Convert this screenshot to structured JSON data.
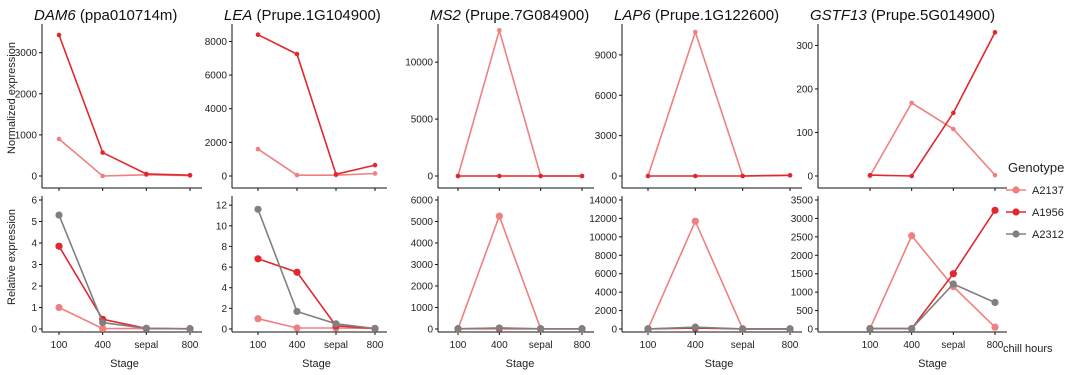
{
  "x_title": "Stage",
  "x_extra_label": "chill hours",
  "top_ylabel": "Normalized expression",
  "bottom_ylabel": "Relative expression",
  "legend": {
    "title": "Genotype",
    "entries": [
      {
        "name": "A2137",
        "color": "#f08080"
      },
      {
        "name": "A1956",
        "color": "#e0282e"
      },
      {
        "name": "A2312",
        "color": "#808080"
      }
    ]
  },
  "chart_data": [
    {
      "type": "line",
      "gene": "DAM6",
      "locus": "(ppa010714m)",
      "categories": [
        "100",
        "400",
        "sepal",
        "800"
      ],
      "top": {
        "ylim": [
          0,
          3600
        ],
        "yticks": [
          0,
          1000,
          2000,
          3000
        ],
        "series": [
          {
            "name": "A2137",
            "values": [
              900,
              0,
              30,
              10
            ]
          },
          {
            "name": "A1956",
            "values": [
              3430,
              570,
              50,
              20
            ]
          }
        ]
      },
      "bottom": {
        "ylim": [
          0,
          6
        ],
        "yticks": [
          0,
          1,
          2,
          3,
          4,
          5,
          6
        ],
        "series": [
          {
            "name": "A2137",
            "values": [
              1.0,
              0.02,
              0.02,
              0.01
            ]
          },
          {
            "name": "A1956",
            "values": [
              3.85,
              0.45,
              0.03,
              0.01
            ]
          },
          {
            "name": "A2312",
            "values": [
              5.3,
              0.3,
              0.03,
              0.01
            ]
          }
        ]
      }
    },
    {
      "type": "line",
      "gene": "LEA",
      "locus": "(Prupe.1G104900)",
      "categories": [
        "100",
        "400",
        "sepal",
        "800"
      ],
      "top": {
        "ylim": [
          0,
          8800
        ],
        "yticks": [
          0,
          2000,
          4000,
          6000,
          8000
        ],
        "series": [
          {
            "name": "A2137",
            "values": [
              1600,
              50,
              50,
              150
            ]
          },
          {
            "name": "A1956",
            "values": [
              8400,
              7250,
              100,
              650
            ]
          }
        ]
      },
      "bottom": {
        "ylim": [
          0,
          12.5
        ],
        "yticks": [
          0,
          2,
          4,
          6,
          8,
          10,
          12
        ],
        "series": [
          {
            "name": "A2137",
            "values": [
              1.0,
              0.1,
              0.1,
              0.05
            ]
          },
          {
            "name": "A1956",
            "values": [
              6.8,
              5.5,
              0.3,
              0.05
            ]
          },
          {
            "name": "A2312",
            "values": [
              11.6,
              1.7,
              0.5,
              0.05
            ]
          }
        ]
      }
    },
    {
      "type": "line",
      "gene": "MS2",
      "locus": "(Prupe.7G084900)",
      "categories": [
        "100",
        "400",
        "sepal",
        "800"
      ],
      "top": {
        "ylim": [
          0,
          13000
        ],
        "yticks": [
          0,
          5000,
          10000
        ],
        "series": [
          {
            "name": "A2137",
            "values": [
              0,
              12800,
              0,
              0
            ]
          },
          {
            "name": "A1956",
            "values": [
              0,
              0,
              0,
              0
            ]
          }
        ]
      },
      "bottom": {
        "ylim": [
          0,
          6000
        ],
        "yticks": [
          0,
          1000,
          2000,
          3000,
          4000,
          5000,
          6000
        ],
        "series": [
          {
            "name": "A2137",
            "values": [
              10,
              5250,
              10,
              10
            ]
          },
          {
            "name": "A1956",
            "values": [
              10,
              20,
              10,
              10
            ]
          },
          {
            "name": "A2312",
            "values": [
              10,
              50,
              10,
              10
            ]
          }
        ]
      }
    },
    {
      "type": "line",
      "gene": "LAP6",
      "locus": "(Prupe.1G122600)",
      "categories": [
        "100",
        "400",
        "sepal",
        "800"
      ],
      "top": {
        "ylim": [
          0,
          11000
        ],
        "yticks": [
          0,
          3000,
          6000,
          9000
        ],
        "series": [
          {
            "name": "A2137",
            "values": [
              0,
              10700,
              0,
              50
            ]
          },
          {
            "name": "A1956",
            "values": [
              0,
              0,
              0,
              50
            ]
          }
        ]
      },
      "bottom": {
        "ylim": [
          0,
          14000
        ],
        "yticks": [
          0,
          2000,
          4000,
          6000,
          8000,
          10000,
          12000,
          14000
        ],
        "series": [
          {
            "name": "A2137",
            "values": [
              10,
              11700,
              10,
              10
            ]
          },
          {
            "name": "A1956",
            "values": [
              10,
              100,
              10,
              10
            ]
          },
          {
            "name": "A2312",
            "values": [
              10,
              200,
              10,
              10
            ]
          }
        ]
      }
    },
    {
      "type": "line",
      "gene": "GSTF13",
      "locus": "(Prupe.5G014900)",
      "categories": [
        "100",
        "400",
        "sepal",
        "800"
      ],
      "top": {
        "ylim": [
          0,
          340
        ],
        "yticks": [
          0,
          100,
          200,
          300
        ],
        "series": [
          {
            "name": "A2137",
            "values": [
              0,
              168,
              108,
              2
            ]
          },
          {
            "name": "A1956",
            "values": [
              2,
              0,
              145,
              330
            ]
          }
        ]
      },
      "bottom": {
        "ylim": [
          0,
          3500
        ],
        "yticks": [
          0,
          500,
          1000,
          1500,
          2000,
          2500,
          3000,
          3500
        ],
        "series": [
          {
            "name": "A2137",
            "values": [
              10,
              2530,
              1150,
              50
            ]
          },
          {
            "name": "A1956",
            "values": [
              10,
              10,
              1500,
              3220
            ]
          },
          {
            "name": "A2312",
            "values": [
              10,
              10,
              1220,
              720
            ]
          }
        ]
      }
    }
  ]
}
